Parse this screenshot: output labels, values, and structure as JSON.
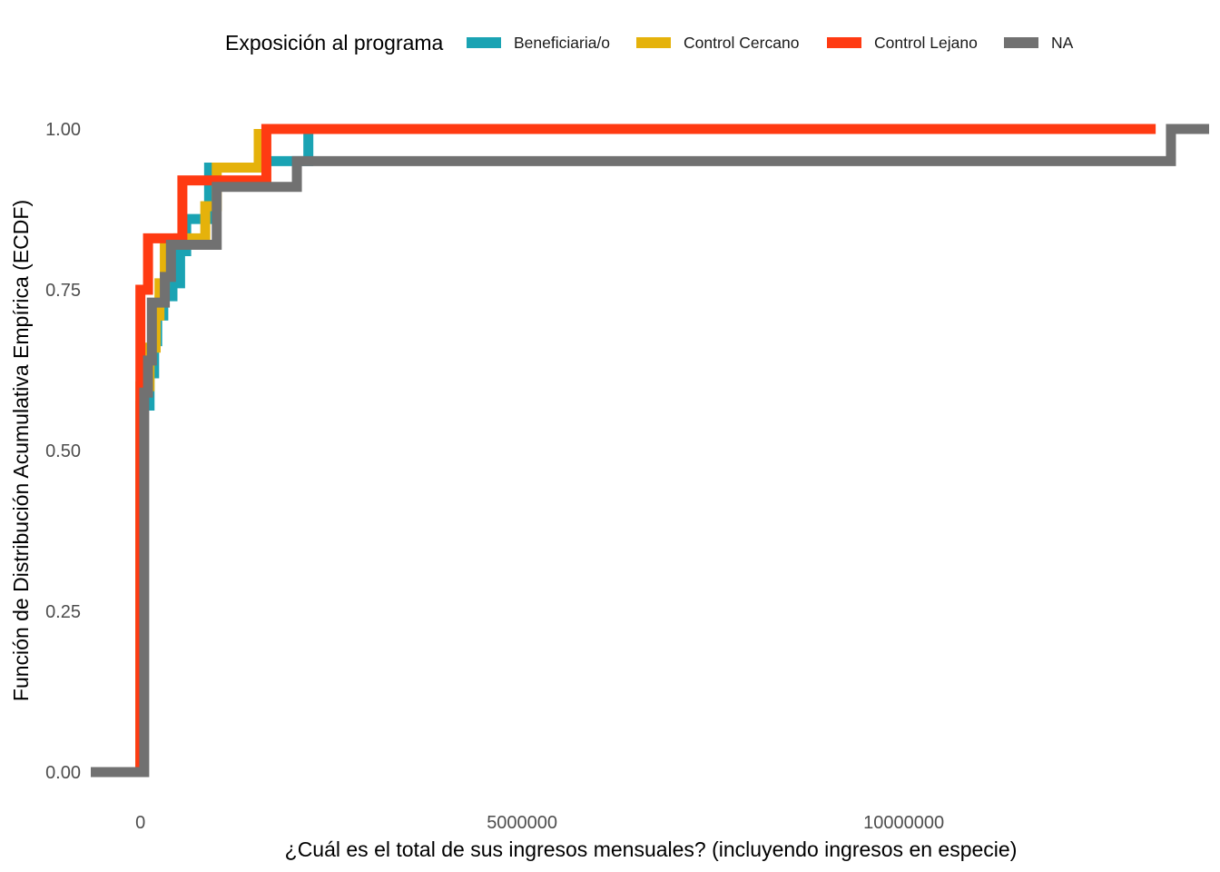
{
  "chart_data": {
    "type": "line",
    "step": true,
    "xlabel": "¿Cuál es el total de sus ingresos mensuales? (incluyendo ingresos en especie)",
    "ylabel": "Función de Distribución Acumulativa Empírica (ECDF)",
    "xlim": [
      -650000,
      14000000
    ],
    "ylim": [
      0,
      1
    ],
    "x_ticks": [
      0,
      5000000,
      10000000
    ],
    "x_tick_labels": [
      "0",
      "5000000",
      "10000000"
    ],
    "y_ticks": [
      0,
      0.25,
      0.5,
      0.75,
      1
    ],
    "y_tick_labels": [
      "0.00",
      "0.25",
      "0.50",
      "0.75",
      "1.00"
    ],
    "grid": false,
    "legend": {
      "title": "Exposición al programa",
      "position": "top",
      "entries": [
        "Beneficiaria/o",
        "Control Cercano",
        "Control Lejano",
        "NA"
      ]
    },
    "series": [
      {
        "name": "Beneficiaria/o",
        "color": "#1AA3B3",
        "points": [
          [
            0,
            0
          ],
          [
            0,
            0.57
          ],
          [
            120000,
            0.62
          ],
          [
            180000,
            0.67
          ],
          [
            220000,
            0.71
          ],
          [
            300000,
            0.74
          ],
          [
            420000,
            0.76
          ],
          [
            520000,
            0.81
          ],
          [
            600000,
            0.86
          ],
          [
            900000,
            0.94
          ],
          [
            1550000,
            0.95
          ],
          [
            2200000,
            1.0
          ]
        ]
      },
      {
        "name": "Control Cercano",
        "color": "#E5B20B",
        "points": [
          [
            0,
            0
          ],
          [
            0,
            0.6
          ],
          [
            120000,
            0.66
          ],
          [
            200000,
            0.71
          ],
          [
            250000,
            0.76
          ],
          [
            320000,
            0.82
          ],
          [
            500000,
            0.83
          ],
          [
            850000,
            0.88
          ],
          [
            1000000,
            0.94
          ],
          [
            1550000,
            1.0
          ]
        ]
      },
      {
        "name": "Control Lejano",
        "color": "#FF3A12",
        "points": [
          [
            0,
            0
          ],
          [
            0,
            0.6
          ],
          [
            0,
            0.75
          ],
          [
            100000,
            0.83
          ],
          [
            550000,
            0.92
          ],
          [
            1650000,
            1.0
          ],
          [
            13300000,
            1.0
          ]
        ]
      },
      {
        "name": "NA",
        "color": "#717171",
        "points": [
          [
            -650000,
            0
          ],
          [
            50000,
            0.59
          ],
          [
            100000,
            0.64
          ],
          [
            150000,
            0.73
          ],
          [
            320000,
            0.77
          ],
          [
            400000,
            0.82
          ],
          [
            1000000,
            0.91
          ],
          [
            2050000,
            0.95
          ],
          [
            13500000,
            1.0
          ],
          [
            14000000,
            1.0
          ]
        ]
      }
    ]
  }
}
